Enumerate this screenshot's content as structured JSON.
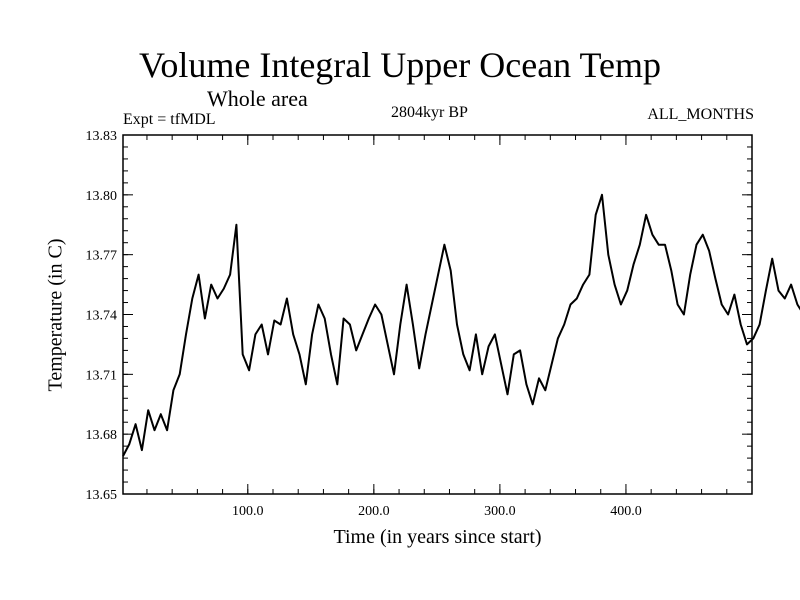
{
  "chart_data": {
    "type": "line",
    "title": "Volume Integral Upper Ocean Temp",
    "subtitle": "Whole area",
    "left_annotation": "Expt = tfMDL",
    "center_annotation": "2804kyr BP",
    "right_annotation": "ALL_MONTHS",
    "xlabel": "Time (in years since start)",
    "ylabel": "Temperature (in C)",
    "xlim": [
      1,
      500
    ],
    "ylim": [
      13.65,
      13.83
    ],
    "xticks": [
      100,
      200,
      300,
      400
    ],
    "xtick_labels": [
      "100.0",
      "200.0",
      "300.0",
      "400.0"
    ],
    "yticks": [
      13.65,
      13.68,
      13.71,
      13.74,
      13.77,
      13.8,
      13.83
    ],
    "ytick_labels": [
      "13.65",
      "13.68",
      "13.71",
      "13.74",
      "13.77",
      "13.80",
      "13.83"
    ],
    "series": [
      {
        "name": "Volume integral upper ocean temperature",
        "x_start": 1,
        "x_step": 5,
        "values": [
          13.669,
          13.675,
          13.685,
          13.672,
          13.692,
          13.682,
          13.69,
          13.682,
          13.702,
          13.71,
          13.73,
          13.748,
          13.76,
          13.738,
          13.755,
          13.748,
          13.753,
          13.76,
          13.785,
          13.72,
          13.712,
          13.73,
          13.735,
          13.72,
          13.737,
          13.735,
          13.748,
          13.73,
          13.72,
          13.705,
          13.73,
          13.745,
          13.738,
          13.72,
          13.705,
          13.738,
          13.735,
          13.722,
          13.73,
          13.738,
          13.745,
          13.74,
          13.725,
          13.71,
          13.735,
          13.755,
          13.735,
          13.713,
          13.73,
          13.745,
          13.76,
          13.775,
          13.762,
          13.735,
          13.72,
          13.712,
          13.73,
          13.71,
          13.724,
          13.73,
          13.715,
          13.7,
          13.72,
          13.722,
          13.705,
          13.695,
          13.708,
          13.702,
          13.715,
          13.728,
          13.735,
          13.745,
          13.748,
          13.755,
          13.76,
          13.79,
          13.8,
          13.77,
          13.755,
          13.745,
          13.752,
          13.765,
          13.775,
          13.79,
          13.78,
          13.775,
          13.775,
          13.762,
          13.745,
          13.74,
          13.76,
          13.775,
          13.78,
          13.772,
          13.758,
          13.745,
          13.74,
          13.75,
          13.735,
          13.725,
          13.728,
          13.735,
          13.752,
          13.768,
          13.752,
          13.748,
          13.755,
          13.745,
          13.74,
          13.748,
          13.77,
          13.795,
          13.802,
          13.79,
          13.778,
          13.765,
          13.758,
          13.755,
          13.745,
          13.742,
          13.76,
          13.775,
          13.785,
          13.79,
          13.79,
          13.78,
          13.77,
          13.76,
          13.752,
          13.765,
          13.78,
          13.795,
          13.795,
          13.78,
          13.77,
          13.765,
          13.76,
          13.755,
          13.752,
          13.745,
          13.74,
          13.742,
          13.748,
          13.765,
          13.775,
          13.79,
          13.78,
          13.77,
          13.76,
          13.75,
          13.755,
          13.765,
          13.77,
          13.76,
          13.745,
          13.742,
          13.74,
          13.738,
          13.745,
          13.76,
          13.785,
          13.795,
          13.8,
          13.805,
          13.815,
          13.8,
          13.79,
          13.772,
          13.76,
          13.745,
          13.745,
          13.762,
          13.77,
          13.78,
          13.795,
          13.785,
          13.775,
          13.768,
          13.77,
          13.785,
          13.795,
          13.79,
          13.78,
          13.77,
          13.762,
          13.745,
          13.735,
          13.74,
          13.75,
          13.755,
          13.76,
          13.775,
          13.79,
          13.8,
          13.81,
          13.8,
          13.79,
          13.78,
          13.772,
          13.765
        ]
      }
    ],
    "line_color": "#000000",
    "background": "#ffffff"
  }
}
